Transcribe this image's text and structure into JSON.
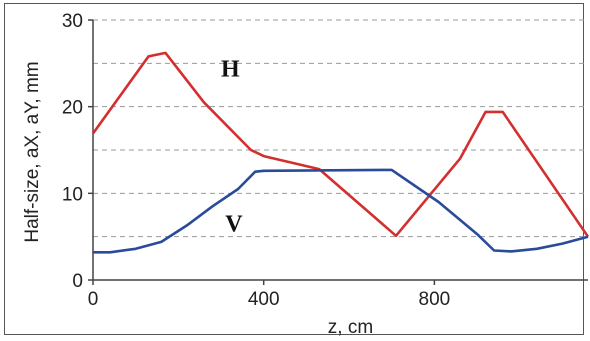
{
  "chart_data": {
    "type": "line",
    "title": "",
    "xlabel": "z, cm",
    "ylabel": "Half-size, aX, aY, mm",
    "xlim": [
      0,
      1160
    ],
    "ylim": [
      0,
      30
    ],
    "xticks": [
      "0",
      "400",
      "800"
    ],
    "xtick_values": [
      0,
      400,
      800
    ],
    "yticks": [
      "0",
      "10",
      "20",
      "30"
    ],
    "ytick_values": [
      0,
      10,
      20,
      30
    ],
    "grid_y_minor": [
      5,
      15,
      25
    ],
    "grid": "horizontal dashed",
    "series": [
      {
        "name": "H",
        "color": "#d32f2f",
        "points": [
          [
            0,
            16.9
          ],
          [
            130,
            25.8
          ],
          [
            170,
            26.2
          ],
          [
            260,
            20.5
          ],
          [
            370,
            15.0
          ],
          [
            400,
            14.3
          ],
          [
            530,
            12.8
          ],
          [
            710,
            5.1
          ],
          [
            860,
            14.0
          ],
          [
            920,
            19.4
          ],
          [
            960,
            19.4
          ],
          [
            1160,
            5.0
          ]
        ]
      },
      {
        "name": "V",
        "color": "#2a4a9a",
        "points": [
          [
            0,
            3.2
          ],
          [
            40,
            3.2
          ],
          [
            100,
            3.6
          ],
          [
            160,
            4.4
          ],
          [
            220,
            6.3
          ],
          [
            280,
            8.5
          ],
          [
            340,
            10.5
          ],
          [
            380,
            12.5
          ],
          [
            400,
            12.6
          ],
          [
            700,
            12.7
          ],
          [
            810,
            9.0
          ],
          [
            900,
            5.3
          ],
          [
            940,
            3.4
          ],
          [
            980,
            3.3
          ],
          [
            1040,
            3.6
          ],
          [
            1100,
            4.2
          ],
          [
            1160,
            5.0
          ]
        ]
      }
    ],
    "annotations": [
      {
        "text": "H",
        "x": 300,
        "y": 23.5
      },
      {
        "text": "V",
        "x": 310,
        "y": 5.6
      }
    ]
  }
}
